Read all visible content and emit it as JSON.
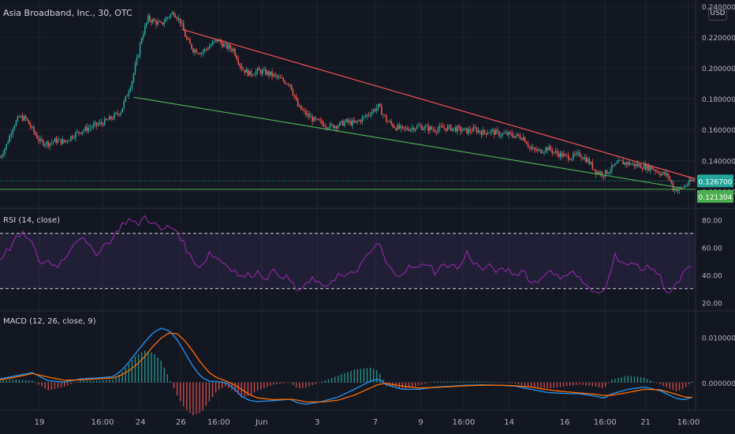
{
  "header": {
    "symbol": "Asia Broadband, Inc., 30, OTC",
    "currency": "USD"
  },
  "panes": {
    "rsi_label": "RSI (14, close)",
    "macd_label": "MACD (12, 26, close, 9)"
  },
  "colors": {
    "background": "#131722",
    "up": "#26a69a",
    "down": "#ef5350",
    "resistance": "#ef5350",
    "support": "#4caf50",
    "rsi_line": "#9c27b0",
    "rsi_band": "#7e57c2",
    "macd_line": "#2196f3",
    "signal_line": "#ff6d00",
    "grid": "#1e222d"
  },
  "chart_data": [
    {
      "type": "candlestick",
      "x_tick_labels": [
        "19",
        "16:00",
        "24",
        "26",
        "16:00",
        "Jun",
        "3",
        "7",
        "9",
        "16:00",
        "14",
        "16",
        "16:00",
        "21",
        "16:00"
      ],
      "y_tick_labels": [
        "0.240000",
        "0.220000",
        "0.200000",
        "0.180000",
        "0.160000",
        "0.140000",
        "0.120000"
      ],
      "ylim": [
        0.112,
        0.242
      ],
      "price_path": [
        [
          0,
          0.142
        ],
        [
          4,
          0.15
        ],
        [
          8,
          0.162
        ],
        [
          12,
          0.168
        ],
        [
          16,
          0.167
        ],
        [
          20,
          0.16
        ],
        [
          25,
          0.152
        ],
        [
          30,
          0.151
        ],
        [
          35,
          0.153
        ],
        [
          40,
          0.152
        ],
        [
          45,
          0.156
        ],
        [
          50,
          0.159
        ],
        [
          55,
          0.161
        ],
        [
          60,
          0.163
        ],
        [
          65,
          0.165
        ],
        [
          70,
          0.168
        ],
        [
          75,
          0.172
        ],
        [
          78,
          0.18
        ],
        [
          82,
          0.192
        ],
        [
          85,
          0.205
        ],
        [
          88,
          0.22
        ],
        [
          92,
          0.232
        ],
        [
          96,
          0.23
        ],
        [
          100,
          0.228
        ],
        [
          104,
          0.233
        ],
        [
          108,
          0.236
        ],
        [
          112,
          0.23
        ],
        [
          116,
          0.218
        ],
        [
          120,
          0.212
        ],
        [
          125,
          0.21
        ],
        [
          130,
          0.214
        ],
        [
          135,
          0.218
        ],
        [
          140,
          0.214
        ],
        [
          145,
          0.212
        ],
        [
          150,
          0.2
        ],
        [
          155,
          0.196
        ],
        [
          160,
          0.198
        ],
        [
          165,
          0.197
        ],
        [
          170,
          0.195
        ],
        [
          175,
          0.192
        ],
        [
          180,
          0.19
        ],
        [
          185,
          0.175
        ],
        [
          190,
          0.17
        ],
        [
          195,
          0.166
        ],
        [
          200,
          0.164
        ],
        [
          205,
          0.162
        ],
        [
          210,
          0.163
        ],
        [
          215,
          0.165
        ],
        [
          220,
          0.164
        ],
        [
          225,
          0.167
        ],
        [
          230,
          0.171
        ],
        [
          235,
          0.175
        ],
        [
          240,
          0.166
        ],
        [
          245,
          0.162
        ],
        [
          250,
          0.16
        ],
        [
          255,
          0.161
        ],
        [
          260,
          0.162
        ],
        [
          265,
          0.161
        ],
        [
          270,
          0.16
        ],
        [
          275,
          0.161
        ],
        [
          280,
          0.161
        ],
        [
          285,
          0.16
        ],
        [
          290,
          0.159
        ],
        [
          295,
          0.16
        ],
        [
          300,
          0.158
        ],
        [
          305,
          0.159
        ],
        [
          310,
          0.157
        ],
        [
          315,
          0.157
        ],
        [
          320,
          0.156
        ],
        [
          325,
          0.155
        ],
        [
          330,
          0.147
        ],
        [
          335,
          0.146
        ],
        [
          340,
          0.148
        ],
        [
          345,
          0.145
        ],
        [
          350,
          0.143
        ],
        [
          355,
          0.142
        ],
        [
          360,
          0.144
        ],
        [
          365,
          0.14
        ],
        [
          370,
          0.133
        ],
        [
          375,
          0.131
        ],
        [
          380,
          0.135
        ],
        [
          385,
          0.139
        ],
        [
          390,
          0.138
        ],
        [
          395,
          0.137
        ],
        [
          400,
          0.136
        ],
        [
          405,
          0.135
        ],
        [
          410,
          0.132
        ],
        [
          415,
          0.13
        ],
        [
          418,
          0.122
        ],
        [
          422,
          0.121
        ],
        [
          426,
          0.124
        ],
        [
          430,
          0.127
        ]
      ],
      "resistance_line": {
        "from": [
          113,
          0.225
        ],
        "to": [
          432,
          0.128
        ],
        "price_label": "0.126700"
      },
      "support_line": {
        "from": [
          83,
          0.181
        ],
        "to": [
          424,
          0.122
        ],
        "price_label": "0.121304"
      }
    },
    {
      "type": "line",
      "name": "RSI (14, close)",
      "y_tick_labels": [
        "80.00",
        "60.00",
        "40.00",
        "20.00"
      ],
      "ylim": [
        15,
        87
      ],
      "upper_band": 70,
      "lower_band": 30,
      "values": [
        [
          0,
          52
        ],
        [
          5,
          58
        ],
        [
          10,
          66
        ],
        [
          15,
          70
        ],
        [
          20,
          62
        ],
        [
          25,
          48
        ],
        [
          30,
          50
        ],
        [
          35,
          46
        ],
        [
          40,
          52
        ],
        [
          45,
          62
        ],
        [
          50,
          68
        ],
        [
          55,
          60
        ],
        [
          60,
          56
        ],
        [
          65,
          62
        ],
        [
          70,
          66
        ],
        [
          75,
          76
        ],
        [
          80,
          80
        ],
        [
          85,
          76
        ],
        [
          90,
          82
        ],
        [
          95,
          78
        ],
        [
          100,
          72
        ],
        [
          105,
          75
        ],
        [
          110,
          72
        ],
        [
          115,
          60
        ],
        [
          120,
          50
        ],
        [
          125,
          46
        ],
        [
          130,
          56
        ],
        [
          135,
          52
        ],
        [
          140,
          48
        ],
        [
          145,
          44
        ],
        [
          150,
          38
        ],
        [
          155,
          40
        ],
        [
          160,
          42
        ],
        [
          165,
          38
        ],
        [
          170,
          42
        ],
        [
          175,
          40
        ],
        [
          180,
          36
        ],
        [
          185,
          28
        ],
        [
          190,
          32
        ],
        [
          195,
          38
        ],
        [
          200,
          30
        ],
        [
          205,
          35
        ],
        [
          210,
          40
        ],
        [
          215,
          38
        ],
        [
          220,
          42
        ],
        [
          225,
          48
        ],
        [
          230,
          56
        ],
        [
          235,
          64
        ],
        [
          240,
          48
        ],
        [
          245,
          40
        ],
        [
          250,
          42
        ],
        [
          255,
          46
        ],
        [
          260,
          44
        ],
        [
          265,
          50
        ],
        [
          270,
          42
        ],
        [
          275,
          46
        ],
        [
          280,
          48
        ],
        [
          285,
          44
        ],
        [
          290,
          56
        ],
        [
          295,
          48
        ],
        [
          300,
          44
        ],
        [
          305,
          46
        ],
        [
          310,
          42
        ],
        [
          315,
          44
        ],
        [
          320,
          40
        ],
        [
          325,
          44
        ],
        [
          330,
          34
        ],
        [
          335,
          36
        ],
        [
          340,
          44
        ],
        [
          345,
          38
        ],
        [
          350,
          40
        ],
        [
          355,
          42
        ],
        [
          360,
          38
        ],
        [
          365,
          30
        ],
        [
          370,
          26
        ],
        [
          375,
          28
        ],
        [
          378,
          40
        ],
        [
          382,
          54
        ],
        [
          386,
          50
        ],
        [
          390,
          46
        ],
        [
          395,
          48
        ],
        [
          400,
          44
        ],
        [
          405,
          46
        ],
        [
          410,
          38
        ],
        [
          415,
          26
        ],
        [
          420,
          32
        ],
        [
          425,
          42
        ],
        [
          430,
          45
        ]
      ]
    },
    {
      "type": "line",
      "name": "MACD (12, 26, close, 9)",
      "y_tick_labels": [
        "0.010000",
        "0.000000"
      ],
      "ylim": [
        -0.0058,
        0.0155
      ],
      "macd": [
        [
          0,
          0.0008
        ],
        [
          10,
          0.0015
        ],
        [
          20,
          0.0022
        ],
        [
          30,
          0.0004
        ],
        [
          40,
          0.0001
        ],
        [
          50,
          0.0008
        ],
        [
          60,
          0.001
        ],
        [
          70,
          0.0013
        ],
        [
          75,
          0.0025
        ],
        [
          80,
          0.0045
        ],
        [
          85,
          0.0068
        ],
        [
          90,
          0.009
        ],
        [
          95,
          0.011
        ],
        [
          100,
          0.012
        ],
        [
          105,
          0.0115
        ],
        [
          110,
          0.0095
        ],
        [
          115,
          0.0065
        ],
        [
          120,
          0.0035
        ],
        [
          125,
          0.0012
        ],
        [
          130,
          0.0003
        ],
        [
          135,
          0.0002
        ],
        [
          140,
          0.0
        ],
        [
          145,
          -0.0012
        ],
        [
          150,
          -0.003
        ],
        [
          155,
          -0.004
        ],
        [
          160,
          -0.0042
        ],
        [
          170,
          -0.004
        ],
        [
          180,
          -0.0037
        ],
        [
          185,
          -0.0045
        ],
        [
          190,
          -0.0048
        ],
        [
          200,
          -0.0042
        ],
        [
          210,
          -0.0032
        ],
        [
          220,
          -0.0015
        ],
        [
          230,
          0.0003
        ],
        [
          235,
          0.0008
        ],
        [
          240,
          -0.0005
        ],
        [
          250,
          -0.0015
        ],
        [
          260,
          -0.0015
        ],
        [
          270,
          -0.001
        ],
        [
          280,
          -0.0008
        ],
        [
          290,
          -0.0006
        ],
        [
          300,
          -0.0005
        ],
        [
          310,
          -0.0006
        ],
        [
          320,
          -0.0008
        ],
        [
          330,
          -0.0015
        ],
        [
          340,
          -0.0022
        ],
        [
          350,
          -0.0024
        ],
        [
          360,
          -0.0025
        ],
        [
          370,
          -0.003
        ],
        [
          375,
          -0.0035
        ],
        [
          380,
          -0.0025
        ],
        [
          390,
          -0.0015
        ],
        [
          400,
          -0.001
        ],
        [
          410,
          -0.0018
        ],
        [
          420,
          -0.0035
        ],
        [
          425,
          -0.0038
        ],
        [
          430,
          -0.0032
        ]
      ],
      "signal": [
        [
          0,
          0.0006
        ],
        [
          10,
          0.0012
        ],
        [
          20,
          0.002
        ],
        [
          30,
          0.0012
        ],
        [
          40,
          0.0005
        ],
        [
          50,
          0.0006
        ],
        [
          60,
          0.0008
        ],
        [
          70,
          0.001
        ],
        [
          75,
          0.0016
        ],
        [
          80,
          0.0026
        ],
        [
          85,
          0.004
        ],
        [
          90,
          0.0058
        ],
        [
          95,
          0.008
        ],
        [
          100,
          0.0098
        ],
        [
          105,
          0.011
        ],
        [
          110,
          0.0108
        ],
        [
          115,
          0.0092
        ],
        [
          120,
          0.0068
        ],
        [
          125,
          0.0042
        ],
        [
          130,
          0.0022
        ],
        [
          135,
          0.001
        ],
        [
          140,
          0.0004
        ],
        [
          145,
          -0.0004
        ],
        [
          150,
          -0.0015
        ],
        [
          155,
          -0.0027
        ],
        [
          160,
          -0.0034
        ],
        [
          170,
          -0.0038
        ],
        [
          180,
          -0.0037
        ],
        [
          185,
          -0.0039
        ],
        [
          190,
          -0.0043
        ],
        [
          200,
          -0.0043
        ],
        [
          210,
          -0.0039
        ],
        [
          220,
          -0.0028
        ],
        [
          230,
          -0.0012
        ],
        [
          235,
          -0.0004
        ],
        [
          240,
          -0.0002
        ],
        [
          250,
          -0.0008
        ],
        [
          260,
          -0.0012
        ],
        [
          270,
          -0.0011
        ],
        [
          280,
          -0.0009
        ],
        [
          290,
          -0.0007
        ],
        [
          300,
          -0.0006
        ],
        [
          310,
          -0.0006
        ],
        [
          320,
          -0.0007
        ],
        [
          330,
          -0.001
        ],
        [
          340,
          -0.0016
        ],
        [
          350,
          -0.002
        ],
        [
          360,
          -0.0023
        ],
        [
          370,
          -0.0026
        ],
        [
          375,
          -0.0029
        ],
        [
          380,
          -0.0028
        ],
        [
          390,
          -0.0022
        ],
        [
          400,
          -0.0015
        ],
        [
          410,
          -0.0016
        ],
        [
          420,
          -0.0026
        ],
        [
          425,
          -0.0032
        ],
        [
          430,
          -0.0033
        ]
      ]
    }
  ]
}
